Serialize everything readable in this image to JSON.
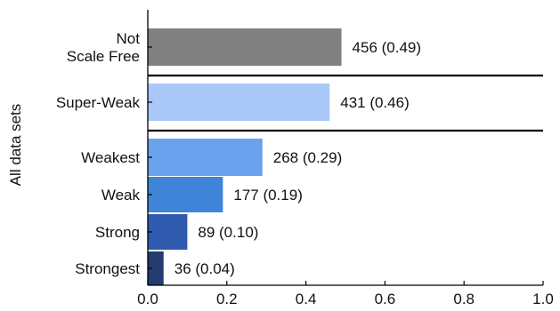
{
  "chart_data": {
    "type": "bar",
    "orientation": "horizontal",
    "title": "",
    "xlabel": "",
    "ylabel": "All data sets",
    "xlim": [
      0,
      1.0
    ],
    "x_ticks": [
      "0.0",
      "0.2",
      "0.4",
      "0.6",
      "0.8",
      "1.0"
    ],
    "x_tick_values": [
      0,
      0.2,
      0.4,
      0.6,
      0.8,
      1.0
    ],
    "grid": false,
    "legend": "none",
    "groups": [
      [
        "Not Scale Free"
      ],
      [
        "Super-Weak"
      ],
      [
        "Weakest",
        "Weak",
        "Strong",
        "Strongest"
      ]
    ],
    "categories": [
      {
        "label_lines": [
          "Not",
          "Scale Free"
        ],
        "value": 0.49,
        "count": 456,
        "label": "456 (0.49)",
        "color": "#808080"
      },
      {
        "label_lines": [
          "Super-Weak"
        ],
        "value": 0.46,
        "count": 431,
        "label": "431 (0.46)",
        "color": "#a9c8f7"
      },
      {
        "label_lines": [
          "Weakest"
        ],
        "value": 0.29,
        "count": 268,
        "label": "268 (0.29)",
        "color": "#6aa2ee"
      },
      {
        "label_lines": [
          "Weak"
        ],
        "value": 0.19,
        "count": 177,
        "label": "177 (0.19)",
        "color": "#3f84d8"
      },
      {
        "label_lines": [
          "Strong"
        ],
        "value": 0.1,
        "count": 89,
        "label": "89 (0.10)",
        "color": "#2f5aae"
      },
      {
        "label_lines": [
          "Strongest"
        ],
        "value": 0.04,
        "count": 36,
        "label": "36 (0.04)",
        "color": "#233b6f"
      }
    ]
  }
}
